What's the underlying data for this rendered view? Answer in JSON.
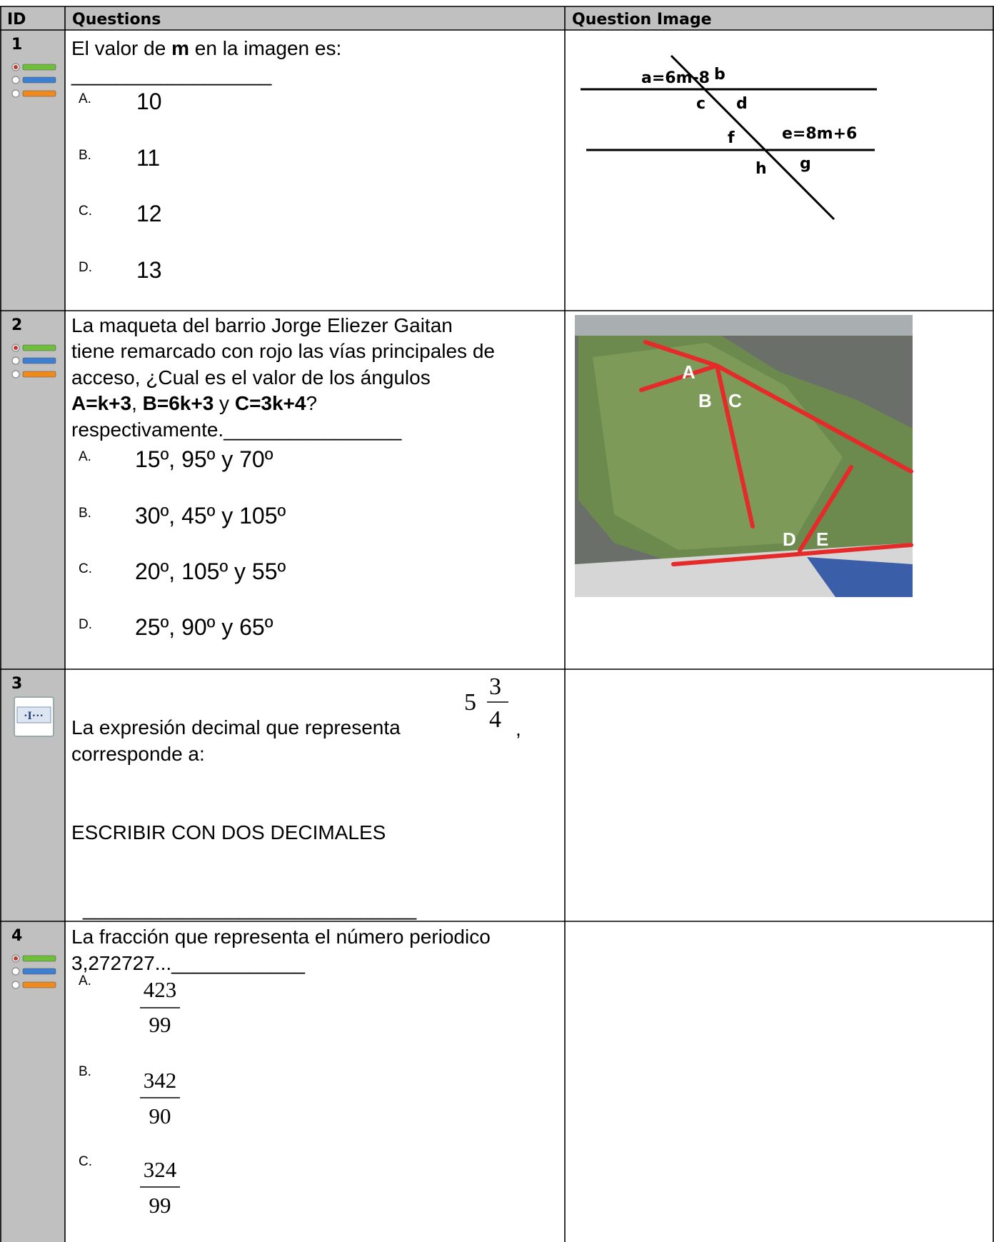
{
  "header": {
    "id": "ID",
    "questions": "Questions",
    "question_image": "Question Image"
  },
  "rows": [
    {
      "id": "1",
      "prompt_lines": [
        [
          {
            "text": "El valor de "
          },
          {
            "text": "m",
            "bold": true
          },
          {
            "text": "  en la imagen es:"
          }
        ],
        [
          {
            "text": "__________________"
          }
        ]
      ],
      "options": [
        {
          "letter": "A.",
          "answer": "10"
        },
        {
          "letter": "B.",
          "answer": "11"
        },
        {
          "letter": "C.",
          "answer": "12"
        },
        {
          "letter": "D.",
          "answer": "13"
        }
      ],
      "diagram_labels": [
        "a=6m-8",
        "b",
        "c",
        "d",
        "f",
        "e=8m+6",
        "h",
        "g"
      ]
    },
    {
      "id": "2",
      "prompt_lines": [
        [
          {
            "text": " La maqueta del barrio Jorge Eliezer Gaitan"
          }
        ],
        [
          {
            "text": "tiene remarcado con rojo las vías principales de"
          }
        ],
        [
          {
            "text": "acceso, ¿Cual es el valor de los ángulos"
          }
        ],
        [
          {
            "text": "A=k+3",
            "bold": true
          },
          {
            "text": ", "
          },
          {
            "text": "B=6k+3",
            "bold": true
          },
          {
            "text": "  y  "
          },
          {
            "text": "C=3k+4",
            "bold": true
          },
          {
            "text": "?"
          }
        ],
        [
          {
            "text": "respectivamente.________________"
          }
        ]
      ],
      "options": [
        {
          "letter": "A.",
          "answer": "15º, 95º y 70º"
        },
        {
          "letter": "B.",
          "answer": "30º, 45º y 105º"
        },
        {
          "letter": "C.",
          "answer": "20º, 105º y 55º"
        },
        {
          "letter": "D.",
          "answer": "25º, 90º y  65º"
        }
      ],
      "photo_labels": [
        "A",
        "B",
        "C",
        "D",
        "E"
      ]
    },
    {
      "id": "3",
      "prompt_lines": [
        [
          {
            "text": "La  expresión decimal que representa"
          }
        ],
        [
          {
            "text": "corresponde a:"
          }
        ]
      ],
      "mixed_number": {
        "whole": "5",
        "numerator": "3",
        "denominator": "4"
      },
      "comma": ",",
      "instruction": "ESCRIBIR CON DOS DECIMALES",
      "answer_blank": "______________________________"
    },
    {
      "id": "4",
      "prompt_lines": [
        [
          {
            "text": "La fracción que representa el número periodico"
          }
        ],
        [
          {
            "text": "3,272727...____________"
          }
        ]
      ],
      "options": [
        {
          "letter": "A.",
          "numerator": "423",
          "denominator": "99"
        },
        {
          "letter": "B.",
          "numerator": "342",
          "denominator": "90"
        },
        {
          "letter": "C.",
          "numerator": "324",
          "denominator": "99"
        }
      ]
    }
  ]
}
